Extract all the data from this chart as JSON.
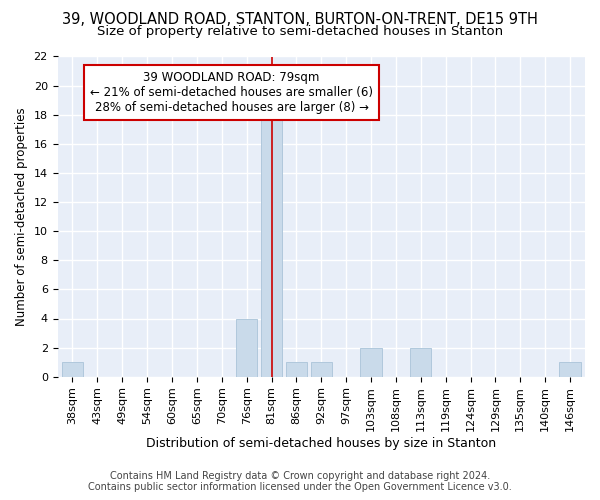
{
  "title": "39, WOODLAND ROAD, STANTON, BURTON-ON-TRENT, DE15 9TH",
  "subtitle": "Size of property relative to semi-detached houses in Stanton",
  "xlabel": "Distribution of semi-detached houses by size in Stanton",
  "ylabel": "Number of semi-detached properties",
  "categories": [
    "38sqm",
    "43sqm",
    "49sqm",
    "54sqm",
    "60sqm",
    "65sqm",
    "70sqm",
    "76sqm",
    "81sqm",
    "86sqm",
    "92sqm",
    "97sqm",
    "103sqm",
    "108sqm",
    "113sqm",
    "119sqm",
    "124sqm",
    "129sqm",
    "135sqm",
    "140sqm",
    "146sqm"
  ],
  "values": [
    1,
    0,
    0,
    0,
    0,
    0,
    0,
    4,
    18,
    1,
    1,
    0,
    2,
    0,
    2,
    0,
    0,
    0,
    0,
    0,
    1
  ],
  "bar_color": "#c9daea",
  "bar_edgecolor": "#b0c8dc",
  "highlight_index": 8,
  "highlight_line_color": "#cc0000",
  "annotation_line1": "39 WOODLAND ROAD: 79sqm",
  "annotation_line2": "← 21% of semi-detached houses are smaller (6)",
  "annotation_line3": "28% of semi-detached houses are larger (8) →",
  "annotation_box_color": "#ffffff",
  "annotation_box_edgecolor": "#cc0000",
  "ylim": [
    0,
    22
  ],
  "yticks": [
    0,
    2,
    4,
    6,
    8,
    10,
    12,
    14,
    16,
    18,
    20,
    22
  ],
  "background_color": "#ffffff",
  "plot_background": "#e8eef8",
  "grid_color": "#ffffff",
  "footer_line1": "Contains HM Land Registry data © Crown copyright and database right 2024.",
  "footer_line2": "Contains public sector information licensed under the Open Government Licence v3.0.",
  "title_fontsize": 10.5,
  "subtitle_fontsize": 9.5,
  "xlabel_fontsize": 9,
  "ylabel_fontsize": 8.5,
  "tick_fontsize": 8,
  "annot_fontsize": 8.5,
  "footer_fontsize": 7
}
